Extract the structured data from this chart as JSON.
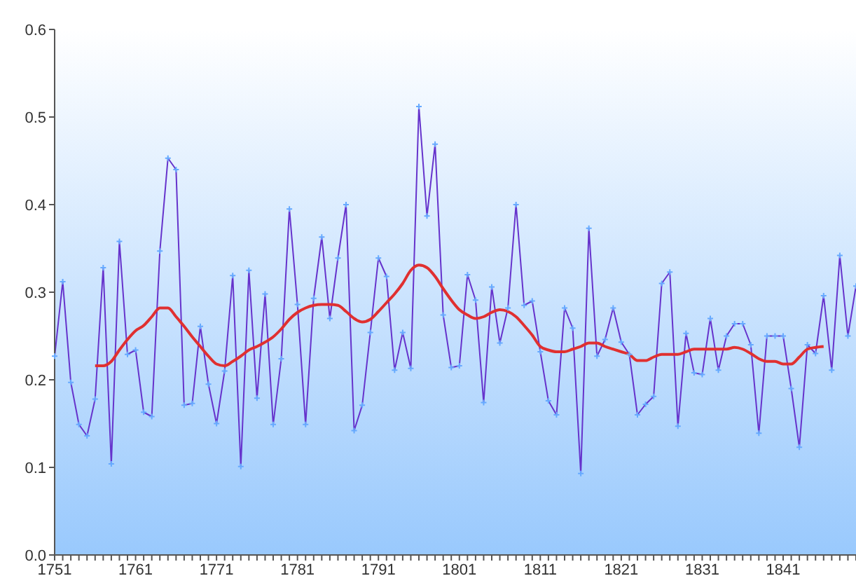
{
  "chart_data": {
    "type": "line",
    "categories": [
      "1751",
      null,
      null,
      null,
      null,
      null,
      null,
      null,
      null,
      null,
      "1761",
      null,
      null,
      null,
      null,
      null,
      null,
      null,
      null,
      null,
      "1771",
      null,
      null,
      null,
      null,
      null,
      null,
      null,
      null,
      null,
      "1781",
      null,
      null,
      null,
      null,
      null,
      null,
      null,
      null,
      null,
      "1791",
      null,
      null,
      null,
      null,
      null,
      null,
      null,
      null,
      null,
      "1801",
      null,
      null,
      null,
      null,
      null,
      null,
      null,
      null,
      null,
      "1811",
      null,
      null,
      null,
      null,
      null,
      null,
      null,
      null,
      null,
      "1821",
      null,
      null,
      null,
      null,
      null,
      null,
      null,
      null,
      null,
      "1831",
      null,
      null,
      null,
      null,
      null,
      null,
      null,
      null,
      null,
      "1841",
      null,
      null,
      null,
      null,
      null,
      null,
      null,
      null,
      null
    ],
    "series": [
      {
        "color": "#6633cc",
        "marker": "cross",
        "values": [
          0.227,
          0.312,
          0.197,
          0.149,
          0.136,
          0.178,
          0.328,
          0.104,
          0.358,
          0.229,
          0.234,
          0.163,
          0.158,
          0.347,
          0.453,
          0.44,
          0.171,
          0.173,
          0.261,
          0.195,
          0.15,
          0.21,
          0.319,
          0.101,
          0.325,
          0.179,
          0.298,
          0.149,
          0.224,
          0.395,
          0.286,
          0.149,
          0.293,
          0.363,
          0.27,
          0.339,
          0.4,
          0.142,
          0.171,
          0.254,
          0.339,
          0.318,
          0.211,
          0.254,
          0.213,
          0.512,
          0.387,
          0.469,
          0.274,
          0.214,
          0.216,
          0.32,
          0.291,
          0.174,
          0.306,
          0.242,
          0.282,
          0.4,
          0.285,
          0.29,
          0.232,
          0.176,
          0.16,
          0.282,
          0.259,
          0.093,
          0.373,
          0.227,
          0.246,
          0.282,
          0.243,
          0.229,
          0.16,
          0.172,
          0.181,
          0.31,
          0.323,
          0.147,
          0.253,
          0.208,
          0.206,
          0.27,
          0.211,
          0.25,
          0.264,
          0.264,
          0.24,
          0.139,
          0.25,
          0.25,
          0.25,
          0.19,
          0.123,
          0.24,
          0.23,
          0.296,
          0.211,
          0.342,
          0.25,
          0.307
        ]
      },
      {
        "color": "#e03030",
        "marker": "none",
        "values": [
          null,
          null,
          null,
          null,
          null,
          0.216,
          0.216,
          0.221,
          0.234,
          0.246,
          0.256,
          0.262,
          0.272,
          0.282,
          0.282,
          0.272,
          0.261,
          0.249,
          0.238,
          0.227,
          0.218,
          0.216,
          0.221,
          0.227,
          0.234,
          0.238,
          0.243,
          0.249,
          0.258,
          0.269,
          0.277,
          0.282,
          0.285,
          0.286,
          0.286,
          0.285,
          0.278,
          0.27,
          0.266,
          0.269,
          0.278,
          0.288,
          0.298,
          0.31,
          0.325,
          0.331,
          0.328,
          0.318,
          0.304,
          0.291,
          0.28,
          0.274,
          0.27,
          0.272,
          0.277,
          0.28,
          0.278,
          0.272,
          0.262,
          0.251,
          0.238,
          0.234,
          0.232,
          0.232,
          0.235,
          0.238,
          0.242,
          0.242,
          0.238,
          0.235,
          0.232,
          0.229,
          0.222,
          0.222,
          0.226,
          0.229,
          0.229,
          0.229,
          0.232,
          0.235,
          0.235,
          0.235,
          0.235,
          0.235,
          0.237,
          0.235,
          0.23,
          0.224,
          0.221,
          0.221,
          0.218,
          0.218,
          0.226,
          0.235,
          0.237,
          0.238,
          null,
          null,
          null,
          null
        ]
      }
    ],
    "ylim": [
      0,
      0.6
    ],
    "yticks": [
      {
        "value": 0,
        "label": "0.0"
      },
      0.1,
      0.2,
      0.3,
      0.4,
      0.5,
      0.6
    ],
    "grid": false,
    "legend": false
  }
}
